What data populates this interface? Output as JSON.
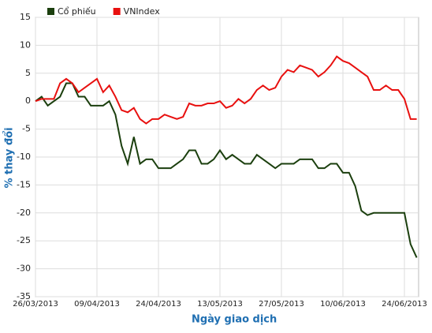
{
  "chart_data": {
    "type": "line",
    "y_label": "% thay đổi",
    "x_label": "Ngày giao dịch",
    "categories": [
      "26/03/2013",
      null,
      null,
      null,
      null,
      null,
      null,
      null,
      null,
      null,
      "09/04/2013",
      null,
      null,
      null,
      null,
      null,
      null,
      null,
      null,
      null,
      "24/04/2013",
      null,
      null,
      null,
      null,
      null,
      null,
      null,
      null,
      null,
      "13/05/2013",
      null,
      null,
      null,
      null,
      null,
      null,
      null,
      null,
      null,
      "27/05/2013",
      null,
      null,
      null,
      null,
      null,
      null,
      null,
      null,
      null,
      "10/06/2013",
      null,
      null,
      null,
      null,
      null,
      null,
      null,
      null,
      null,
      "24/06/2013",
      null,
      null
    ],
    "series": [
      {
        "name": "Cổ phiếu",
        "color": "#1b3f0e",
        "values": [
          0,
          0.8,
          -0.8,
          0,
          0.8,
          3.2,
          3.2,
          0.8,
          0.8,
          -0.8,
          -0.8,
          -0.8,
          0,
          -2.4,
          -8,
          -11.2,
          -6.4,
          -11.2,
          -10.4,
          -10.4,
          -12,
          -12,
          -12,
          -11.2,
          -10.4,
          -8.8,
          -8.8,
          -11.2,
          -11.2,
          -10.4,
          -8.8,
          -10.4,
          -9.6,
          -10.4,
          -11.2,
          -11.2,
          -9.6,
          -10.4,
          -11.2,
          -12,
          -11.2,
          -11.2,
          -11.2,
          -10.4,
          -10.4,
          -10.4,
          -12,
          -12,
          -11.2,
          -11.2,
          -12.8,
          -12.8,
          -15.2,
          -19.6,
          -20.4,
          -20,
          -20,
          -20,
          -20,
          -20,
          -20,
          -25.6,
          -28
        ]
      },
      {
        "name": "VNIndex",
        "color": "#e8100f",
        "values": [
          0,
          0.4,
          0.4,
          0.4,
          3.2,
          4,
          3.2,
          1.6,
          2.4,
          3.2,
          4,
          1.6,
          2.8,
          0.8,
          -1.6,
          -2,
          -1.2,
          -3.2,
          -4,
          -3.2,
          -3.2,
          -2.4,
          -2.8,
          -3.2,
          -2.8,
          -0.4,
          -0.8,
          -0.8,
          -0.4,
          -0.4,
          0,
          -1.2,
          -0.8,
          0.4,
          -0.4,
          0.4,
          2,
          2.8,
          2,
          2.4,
          4.4,
          5.6,
          5.2,
          6.4,
          6,
          5.6,
          4.4,
          5.2,
          6.4,
          8,
          7.2,
          6.8,
          6,
          5.2,
          4.4,
          2,
          2,
          2.8,
          2,
          2,
          0.4,
          -3.2,
          -3.2
        ]
      }
    ],
    "ylim": [
      -35,
      15
    ],
    "yticks": [
      -35,
      -30,
      -25,
      -20,
      -15,
      -10,
      -5,
      0,
      5,
      10,
      15
    ],
    "grid": true
  }
}
